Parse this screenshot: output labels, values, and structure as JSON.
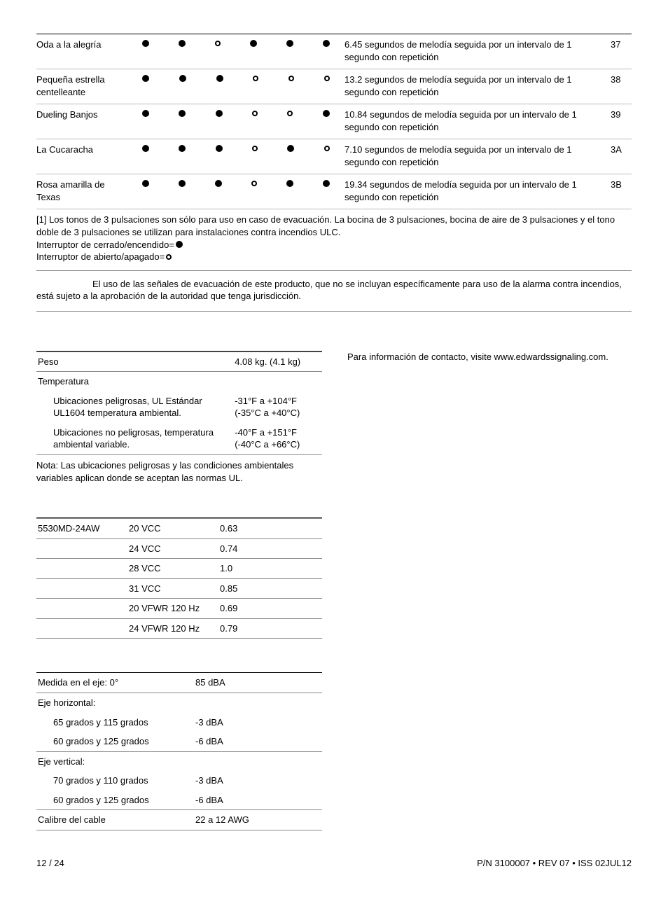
{
  "melodies": [
    {
      "name": "Oda a la alegría",
      "dots": [
        "f",
        "f",
        "o",
        "f",
        "f",
        "f"
      ],
      "desc": "6.45 segundos de melodía seguida por un intervalo de 1 segundo con repetición",
      "code": "37"
    },
    {
      "name": "Pequeña estrella centelleante",
      "dots": [
        "f",
        "f",
        "f",
        "o",
        "o",
        "o"
      ],
      "desc": "13.2 segundos de melodía seguida por un intervalo de 1 segundo con repetición",
      "code": "38"
    },
    {
      "name": "Dueling Banjos",
      "dots": [
        "f",
        "f",
        "f",
        "o",
        "o",
        "f"
      ],
      "desc": "10.84 segundos de melodía seguida por un intervalo de 1 segundo con repetición",
      "code": "39"
    },
    {
      "name": "La Cucaracha",
      "dots": [
        "f",
        "f",
        "f",
        "o",
        "f",
        "o"
      ],
      "desc": "7.10 segundos de melodía seguida por un intervalo de 1 segundo con repetición",
      "code": "3A"
    },
    {
      "name": "Rosa amarilla de Texas",
      "dots": [
        "f",
        "f",
        "f",
        "o",
        "f",
        "f"
      ],
      "desc": "19.34 segundos de melodía seguida por un intervalo de 1 segundo con repetición",
      "code": "3B"
    }
  ],
  "footnote": "[1]   Los tonos de 3 pulsaciones son sólo para uso en caso de evacuación. La bocina de 3 pulsaciones, bocina de aire de 3 pulsaciones y el tono doble de 3 pulsaciones se utilizan para instalaciones contra incendios ULC.",
  "legend": {
    "on": "Interruptor de cerrado/encendido=",
    "off": "Interruptor de abierto/apagado="
  },
  "notice": "El uso de las señales de evacuación de este producto, que no se incluyan específicamente para uso de la alarma contra incendios, está sujeto a la aprobación de la autoridad que tenga jurisdicción.",
  "specs": {
    "weight_label": "Peso",
    "weight_value": "4.08 kg. (4.1 kg)",
    "temp_label": "Temperatura",
    "haz_label": "Ubicaciones peligrosas, UL Estándar UL1604 temperatura ambiental.",
    "haz_value": "-31°F a +104°F (-35°C a +40°C)",
    "nonhaz_label": "Ubicaciones no peligrosas, temperatura ambiental variable.",
    "nonhaz_value": "-40°F a +151°F (-40°C a +66°C)",
    "note": "Nota: Las ubicaciones peligrosas y las condiciones ambientales variables aplican donde se aceptan las normas UL."
  },
  "contact": "Para información de contacto, visite www.edwardssignaling.com.",
  "current": {
    "model": "5530MD-24AW",
    "rows": [
      {
        "v": "20 VCC",
        "a": "0.63"
      },
      {
        "v": "24 VCC",
        "a": "0.74"
      },
      {
        "v": "28 VCC",
        "a": "1.0"
      },
      {
        "v": "31 VCC",
        "a": "0.85"
      },
      {
        "v": "20 VFWR 120 Hz",
        "a": "0.69"
      },
      {
        "v": "24 VFWR 120 Hz",
        "a": "0.79"
      }
    ]
  },
  "sound": {
    "axis_label": "Medida en el eje: 0°",
    "axis_value": "85 dBA",
    "h_label": "Eje horizontal:",
    "h1_label": "65 grados y 115 grados",
    "h1_value": "-3 dBA",
    "h2_label": "60 grados y 125 grados",
    "h2_value": "-6 dBA",
    "v_label": "Eje vertical:",
    "v1_label": "70 grados y 110 grados",
    "v1_value": "-3 dBA",
    "v2_label": "60 grados y 125 grados",
    "v2_value": "-6 dBA",
    "wire_label": "Calibre del cable",
    "wire_value": "22 a 12 AWG"
  },
  "footer": {
    "page": "12 / 24",
    "rev": "P/N 3100007 • REV 07 • ISS 02JUL12"
  }
}
